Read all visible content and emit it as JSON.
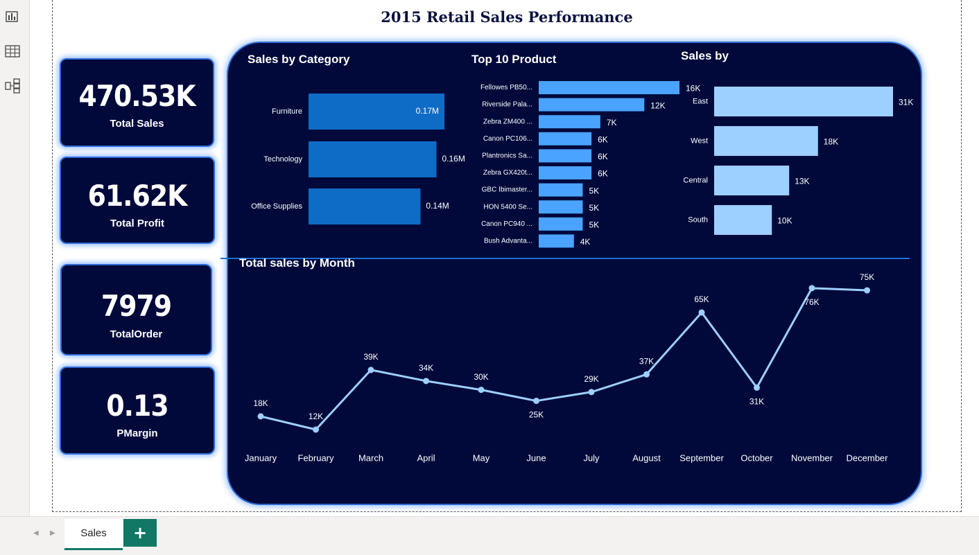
{
  "report": {
    "title": "2015 Retail Sales Performance"
  },
  "left_rail": {
    "icons": [
      "report-view-icon",
      "table-view-icon",
      "model-view-icon"
    ]
  },
  "kpis": {
    "total_sales": {
      "value": "470.53K",
      "label": "Total Sales"
    },
    "total_profit": {
      "value": "61.62K",
      "label": "Total Profit"
    },
    "total_order": {
      "value": "7979",
      "label": "TotalOrder"
    },
    "pmargin": {
      "value": "0.13",
      "label": "PMargin"
    }
  },
  "colors": {
    "navy": "#00093a",
    "category_bar": "#0f6cc6",
    "product_bar": "#4aa3ff",
    "region_bar": "#9dcfff",
    "line": "#9dcfff",
    "accent_green": "#117865"
  },
  "chart_data": [
    {
      "type": "bar",
      "orientation": "horizontal",
      "title": "Sales by Category",
      "categories": [
        "Furniture",
        "Technology",
        "Office Supplies"
      ],
      "values": [
        0.17,
        0.16,
        0.14
      ],
      "value_labels": [
        "0.17M",
        "0.16M",
        "0.14M"
      ],
      "unit": "M"
    },
    {
      "type": "bar",
      "orientation": "horizontal",
      "title": "Top 10 Product",
      "categories": [
        "Fellowes PB50...",
        "Riverside Pala...",
        "Zebra ZM400 ...",
        "Canon PC106...",
        "Plantronics Sa...",
        "Zebra GX420t...",
        "GBC Ibimaster...",
        "HON 5400 Se...",
        "Canon PC940 ...",
        "Bush Advanta..."
      ],
      "values": [
        16,
        12,
        7,
        6,
        6,
        6,
        5,
        5,
        5,
        4
      ],
      "value_labels": [
        "16K",
        "12K",
        "7K",
        "6K",
        "6K",
        "6K",
        "5K",
        "5K",
        "5K",
        "4K"
      ],
      "unit": "K"
    },
    {
      "type": "bar",
      "orientation": "horizontal",
      "title": "Sales by",
      "categories": [
        "East",
        "West",
        "Central",
        "South"
      ],
      "values": [
        31,
        18,
        13,
        10
      ],
      "value_labels": [
        "31K",
        "18K",
        "13K",
        "10K"
      ],
      "unit": "K"
    },
    {
      "type": "line",
      "title": "Total sales by Month",
      "x": [
        "January",
        "February",
        "March",
        "April",
        "May",
        "June",
        "July",
        "August",
        "September",
        "October",
        "November",
        "December"
      ],
      "values": [
        18,
        12,
        39,
        34,
        30,
        25,
        29,
        37,
        65,
        31,
        76,
        75
      ],
      "value_labels": [
        "18K",
        "12K",
        "39K",
        "34K",
        "30K",
        "25K",
        "29K",
        "37K",
        "65K",
        "31K",
        "76K",
        "75K"
      ],
      "unit": "K"
    }
  ],
  "tabs": {
    "sales_label": "Sales",
    "add_label": "+"
  }
}
